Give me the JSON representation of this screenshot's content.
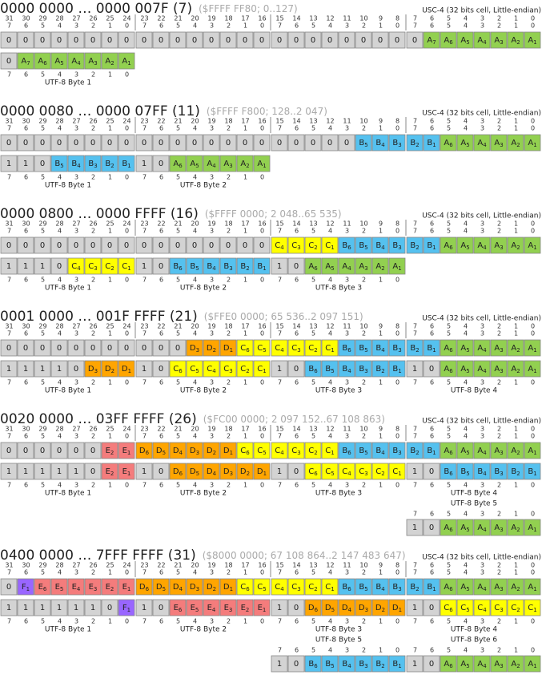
{
  "ucs4_label": "USC-4 (32 bits cell, Little-endian)",
  "bit_numbers": [
    31,
    30,
    29,
    28,
    27,
    26,
    25,
    24,
    23,
    22,
    21,
    20,
    19,
    18,
    17,
    16,
    15,
    14,
    13,
    12,
    11,
    10,
    9,
    8,
    7,
    6,
    5,
    4,
    3,
    2,
    1,
    0
  ],
  "byte_bit_numbers": [
    7,
    6,
    5,
    4,
    3,
    2,
    1,
    0
  ],
  "sections": [
    {
      "title": "0000 0000 … 0000 007F (7)",
      "range": "($FFFF FF80; 0..127)",
      "ucs4_cells": [
        "0",
        "0",
        "0",
        "0",
        "0",
        "0",
        "0",
        "0",
        "0",
        "0",
        "0",
        "0",
        "0",
        "0",
        "0",
        "0",
        "0",
        "0",
        "0",
        "0",
        "0",
        "0",
        "0",
        "0",
        "0",
        "A7",
        "A6",
        "A5",
        "A4",
        "A3",
        "A2",
        "A1"
      ],
      "utf8_bytes": [
        {
          "label": "UTF-8 Byte 1",
          "cells": [
            "0",
            "A7",
            "A6",
            "A5",
            "A4",
            "A3",
            "A2",
            "A1"
          ]
        }
      ]
    },
    {
      "title": "0000 0080 … 0000 07FF (11)",
      "range": "($FFFF F800; 128..2 047)",
      "ucs4_cells": [
        "0",
        "0",
        "0",
        "0",
        "0",
        "0",
        "0",
        "0",
        "0",
        "0",
        "0",
        "0",
        "0",
        "0",
        "0",
        "0",
        "0",
        "0",
        "0",
        "0",
        "0",
        "B5",
        "B4",
        "B3",
        "B2",
        "B1",
        "A6",
        "A5",
        "A4",
        "A3",
        "A2",
        "A1"
      ],
      "utf8_bytes": [
        {
          "label": "UTF-8 Byte 1",
          "cells": [
            "1",
            "1",
            "0",
            "B5",
            "B4",
            "B3",
            "B2",
            "B1"
          ]
        },
        {
          "label": "UTF-8 Byte 2",
          "cells": [
            "1",
            "0",
            "A6",
            "A5",
            "A4",
            "A3",
            "A2",
            "A1"
          ]
        }
      ]
    },
    {
      "title": "0000 0800 … 0000 FFFF (16)",
      "range": "($FFFF 0000; 2 048..65 535)",
      "ucs4_cells": [
        "0",
        "0",
        "0",
        "0",
        "0",
        "0",
        "0",
        "0",
        "0",
        "0",
        "0",
        "0",
        "0",
        "0",
        "0",
        "0",
        "C4",
        "C3",
        "C2",
        "C1",
        "B6",
        "B5",
        "B4",
        "B3",
        "B2",
        "B1",
        "A6",
        "A5",
        "A4",
        "A3",
        "A2",
        "A1"
      ],
      "utf8_bytes": [
        {
          "label": "UTF-8 Byte 1",
          "cells": [
            "1",
            "1",
            "1",
            "0",
            "C4",
            "C3",
            "C2",
            "C1"
          ]
        },
        {
          "label": "UTF-8 Byte 2",
          "cells": [
            "1",
            "0",
            "B6",
            "B5",
            "B4",
            "B3",
            "B2",
            "B1"
          ]
        },
        {
          "label": "UTF-8 Byte 3",
          "cells": [
            "1",
            "0",
            "A6",
            "A5",
            "A4",
            "A3",
            "A2",
            "A1"
          ]
        }
      ]
    },
    {
      "title": "0001 0000 … 001F FFFF (21)",
      "range": "($FFE0 0000; 65 536..2 097 151)",
      "ucs4_cells": [
        "0",
        "0",
        "0",
        "0",
        "0",
        "0",
        "0",
        "0",
        "0",
        "0",
        "0",
        "D3",
        "D2",
        "D1",
        "C6",
        "C5",
        "C4",
        "C3",
        "C2",
        "C1",
        "B6",
        "B5",
        "B4",
        "B3",
        "B2",
        "B1",
        "A6",
        "A5",
        "A4",
        "A3",
        "A2",
        "A1"
      ],
      "utf8_bytes": [
        {
          "label": "UTF-8 Byte 1",
          "cells": [
            "1",
            "1",
            "1",
            "1",
            "0",
            "D3",
            "D2",
            "D1"
          ]
        },
        {
          "label": "UTF-8 Byte 2",
          "cells": [
            "1",
            "0",
            "C6",
            "C5",
            "C4",
            "C3",
            "C2",
            "C1"
          ]
        },
        {
          "label": "UTF-8 Byte 3",
          "cells": [
            "1",
            "0",
            "B6",
            "B5",
            "B4",
            "B3",
            "B2",
            "B1"
          ]
        },
        {
          "label": "UTF-8 Byte 4",
          "cells": [
            "1",
            "0",
            "A6",
            "A5",
            "A4",
            "A3",
            "A2",
            "A1"
          ]
        }
      ]
    },
    {
      "title": "0020 0000 … 03FF FFFF (26)",
      "range": "($FC00 0000; 2 097 152..67 108 863)",
      "ucs4_cells": [
        "0",
        "0",
        "0",
        "0",
        "0",
        "0",
        "E2",
        "E1",
        "D6",
        "D5",
        "D4",
        "D3",
        "D2",
        "D1",
        "C6",
        "C5",
        "C4",
        "C3",
        "C2",
        "C1",
        "B6",
        "B5",
        "B4",
        "B3",
        "B2",
        "B1",
        "A6",
        "A5",
        "A4",
        "A3",
        "A2",
        "A1"
      ],
      "utf8_bytes": [
        {
          "label": "UTF-8 Byte 1",
          "cells": [
            "1",
            "1",
            "1",
            "1",
            "1",
            "0",
            "E2",
            "E1"
          ]
        },
        {
          "label": "UTF-8 Byte 2",
          "cells": [
            "1",
            "0",
            "D6",
            "D5",
            "D4",
            "D3",
            "D2",
            "D1"
          ]
        },
        {
          "label": "UTF-8 Byte 3",
          "cells": [
            "1",
            "0",
            "C6",
            "C5",
            "C4",
            "C3",
            "C2",
            "C1"
          ]
        },
        {
          "label": "UTF-8 Byte 4",
          "cells": [
            "1",
            "0",
            "B6",
            "B5",
            "B4",
            "B3",
            "B2",
            "B1"
          ]
        },
        {
          "label": "UTF-8 Byte 5",
          "cells": [
            "1",
            "0",
            "A6",
            "A5",
            "A4",
            "A3",
            "A2",
            "A1"
          ]
        }
      ]
    },
    {
      "title": "0400 0000 … 7FFF FFFF (31)",
      "range": "($8000 0000; 67 108 864..2 147 483 647)",
      "ucs4_cells": [
        "0",
        "F1",
        "E6",
        "E5",
        "E4",
        "E3",
        "E2",
        "E1",
        "D6",
        "D5",
        "D4",
        "D3",
        "D2",
        "D1",
        "C6",
        "C5",
        "C4",
        "C3",
        "C2",
        "C1",
        "B6",
        "B5",
        "B4",
        "B3",
        "B2",
        "B1",
        "A6",
        "A5",
        "A4",
        "A3",
        "A2",
        "A1"
      ],
      "utf8_bytes": [
        {
          "label": "UTF-8 Byte 1",
          "cells": [
            "1",
            "1",
            "1",
            "1",
            "1",
            "1",
            "0",
            "F1"
          ]
        },
        {
          "label": "UTF-8 Byte 2",
          "cells": [
            "1",
            "0",
            "E6",
            "E5",
            "E4",
            "E3",
            "E2",
            "E1"
          ]
        },
        {
          "label": "UTF-8 Byte 3",
          "cells": [
            "1",
            "0",
            "D6",
            "D5",
            "D4",
            "D3",
            "D2",
            "D1"
          ]
        },
        {
          "label": "UTF-8 Byte 4",
          "cells": [
            "1",
            "0",
            "C6",
            "C5",
            "C4",
            "C3",
            "C2",
            "C1"
          ]
        },
        {
          "label": "UTF-8 Byte 5",
          "cells": [
            "1",
            "0",
            "B6",
            "B5",
            "B4",
            "B3",
            "B2",
            "B1"
          ]
        },
        {
          "label": "UTF-8 Byte 6",
          "cells": [
            "1",
            "0",
            "A6",
            "A5",
            "A4",
            "A3",
            "A2",
            "A1"
          ]
        }
      ]
    }
  ]
}
